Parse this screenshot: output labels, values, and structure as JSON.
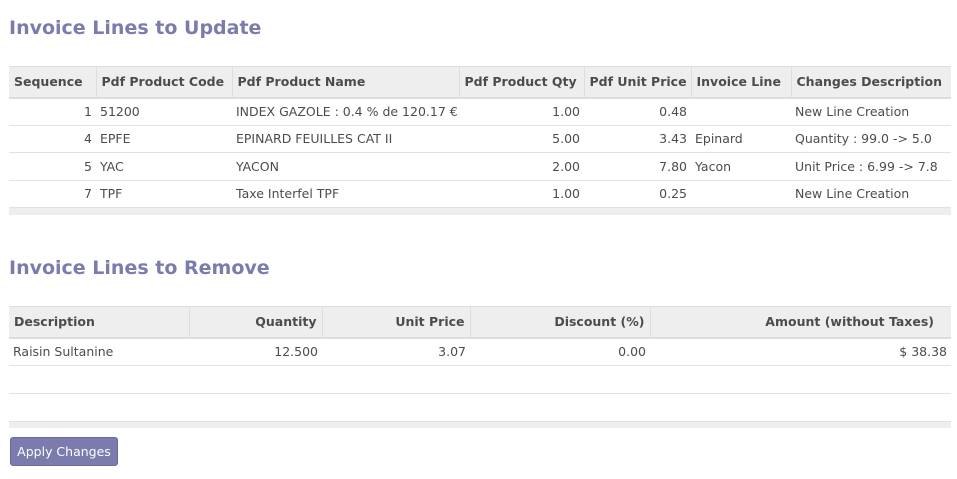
{
  "update_section": {
    "title": "Invoice Lines to Update",
    "columns": [
      "Sequence",
      "Pdf Product Code",
      "Pdf Product Name",
      "Pdf Product Qty",
      "Pdf Unit Price",
      "Invoice Line",
      "Changes Description"
    ],
    "rows": [
      {
        "sequence": "1",
        "code": "51200",
        "name": "INDEX GAZOLE : 0.4 % de 120.17 €",
        "qty": "1.00",
        "unit_price": "0.48",
        "invoice_line": "",
        "changes": "New Line Creation"
      },
      {
        "sequence": "4",
        "code": "EPFE",
        "name": "EPINARD FEUILLES CAT II",
        "qty": "5.00",
        "unit_price": "3.43",
        "invoice_line": "Epinard",
        "changes": "Quantity : 99.0 -> 5.0"
      },
      {
        "sequence": "5",
        "code": "YAC",
        "name": "YACON",
        "qty": "2.00",
        "unit_price": "7.80",
        "invoice_line": "Yacon",
        "changes": "Unit Price : 6.99 -> 7.8"
      },
      {
        "sequence": "7",
        "code": "TPF",
        "name": "Taxe Interfel TPF",
        "qty": "1.00",
        "unit_price": "0.25",
        "invoice_line": "",
        "changes": "New Line Creation"
      }
    ]
  },
  "remove_section": {
    "title": "Invoice Lines to Remove",
    "columns": [
      "Description",
      "Quantity",
      "Unit Price",
      "Discount (%)",
      "Amount (without Taxes)"
    ],
    "rows": [
      {
        "description": "Raisin Sultanine",
        "quantity": "12.500",
        "unit_price": "3.07",
        "discount": "0.00",
        "amount": "$ 38.38"
      }
    ]
  },
  "footer": {
    "apply_label": "Apply Changes"
  },
  "colors": {
    "accent": "#7c7bad",
    "header_bg": "#eeeeee"
  }
}
